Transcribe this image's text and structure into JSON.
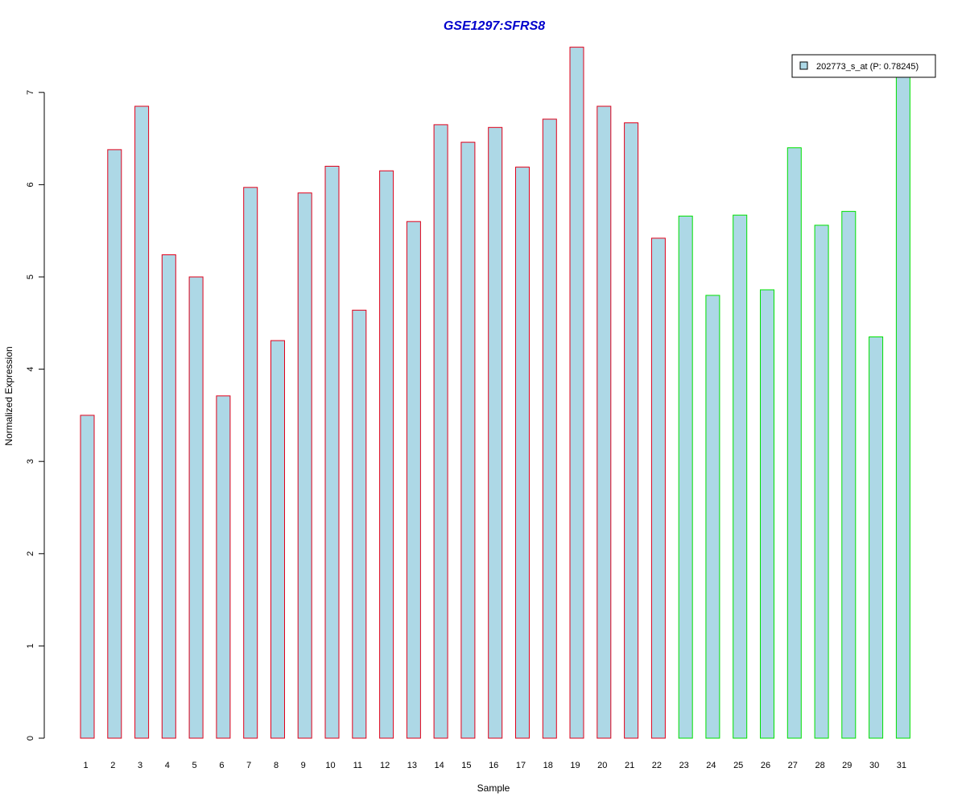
{
  "chart_data": {
    "type": "bar",
    "title": "GSE1297:SFRS8",
    "xlabel": "Sample",
    "ylabel": "Normalized Expression",
    "categories": [
      "1",
      "2",
      "3",
      "4",
      "5",
      "6",
      "7",
      "8",
      "9",
      "10",
      "11",
      "12",
      "13",
      "14",
      "15",
      "16",
      "17",
      "18",
      "19",
      "20",
      "21",
      "22",
      "23",
      "24",
      "25",
      "26",
      "27",
      "28",
      "29",
      "30",
      "31"
    ],
    "yticks": [
      "0",
      "1",
      "2",
      "3",
      "4",
      "5",
      "6",
      "7"
    ],
    "ylim": [
      0,
      7.5
    ],
    "series": [
      {
        "name": "202773_s_at (P: 0.78245)",
        "values": [
          3.5,
          6.38,
          6.85,
          5.24,
          5.0,
          3.71,
          5.97,
          4.31,
          5.91,
          6.2,
          4.64,
          6.15,
          5.6,
          6.65,
          6.46,
          6.62,
          6.19,
          6.71,
          7.49,
          6.85,
          6.67,
          5.42,
          5.66,
          4.8,
          5.67,
          4.86,
          6.4,
          5.56,
          5.71,
          4.35,
          7.2
        ]
      }
    ],
    "groups": [
      1,
      1,
      1,
      1,
      1,
      1,
      1,
      1,
      1,
      1,
      1,
      1,
      1,
      1,
      1,
      1,
      1,
      1,
      1,
      1,
      1,
      1,
      2,
      2,
      2,
      2,
      2,
      2,
      2,
      2,
      2
    ],
    "colors": {
      "fill": "#add8e6",
      "group1_border": "#e0001a",
      "group2_border": "#00e000",
      "title": "#0000cc"
    },
    "legend_position": "top-right",
    "grid": false
  }
}
